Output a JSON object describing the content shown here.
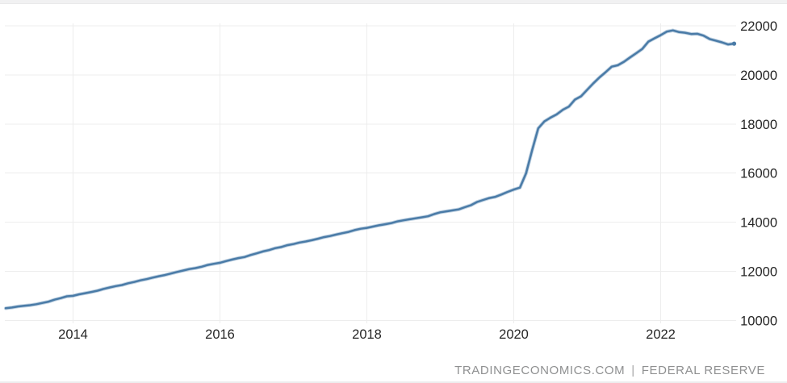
{
  "chart_data": {
    "type": "line",
    "title": "",
    "x": [
      "2013-02",
      "2013-03",
      "2013-04",
      "2013-05",
      "2013-06",
      "2013-07",
      "2013-08",
      "2013-09",
      "2013-10",
      "2013-11",
      "2013-12",
      "2014-01",
      "2014-02",
      "2014-03",
      "2014-04",
      "2014-05",
      "2014-06",
      "2014-07",
      "2014-08",
      "2014-09",
      "2014-10",
      "2014-11",
      "2014-12",
      "2015-01",
      "2015-02",
      "2015-03",
      "2015-04",
      "2015-05",
      "2015-06",
      "2015-07",
      "2015-08",
      "2015-09",
      "2015-10",
      "2015-11",
      "2015-12",
      "2016-01",
      "2016-02",
      "2016-03",
      "2016-04",
      "2016-05",
      "2016-06",
      "2016-07",
      "2016-08",
      "2016-09",
      "2016-10",
      "2016-11",
      "2016-12",
      "2017-01",
      "2017-02",
      "2017-03",
      "2017-04",
      "2017-05",
      "2017-06",
      "2017-07",
      "2017-08",
      "2017-09",
      "2017-10",
      "2017-11",
      "2017-12",
      "2018-01",
      "2018-02",
      "2018-03",
      "2018-04",
      "2018-05",
      "2018-06",
      "2018-07",
      "2018-08",
      "2018-09",
      "2018-10",
      "2018-11",
      "2018-12",
      "2019-01",
      "2019-02",
      "2019-03",
      "2019-04",
      "2019-05",
      "2019-06",
      "2019-07",
      "2019-08",
      "2019-09",
      "2019-10",
      "2019-11",
      "2019-12",
      "2020-01",
      "2020-02",
      "2020-03",
      "2020-04",
      "2020-05",
      "2020-06",
      "2020-07",
      "2020-08",
      "2020-09",
      "2020-10",
      "2020-11",
      "2020-12",
      "2021-01",
      "2021-02",
      "2021-03",
      "2021-04",
      "2021-05",
      "2021-06",
      "2021-07",
      "2021-08",
      "2021-09",
      "2021-10",
      "2021-11",
      "2021-12",
      "2022-01",
      "2022-02",
      "2022-03",
      "2022-04",
      "2022-05",
      "2022-06",
      "2022-07",
      "2022-08",
      "2022-09",
      "2022-10",
      "2022-11",
      "2022-12",
      "2023-01"
    ],
    "series": [
      {
        "name": "series-1",
        "color": "#4a7ba7",
        "values": [
          10499,
          10527,
          10570,
          10596,
          10625,
          10664,
          10717,
          10768,
          10851,
          10914,
          10986,
          11005,
          11066,
          11113,
          11161,
          11216,
          11287,
          11345,
          11402,
          11444,
          11516,
          11568,
          11635,
          11683,
          11747,
          11801,
          11852,
          11912,
          11975,
          12035,
          12093,
          12133,
          12188,
          12260,
          12307,
          12350,
          12420,
          12481,
          12540,
          12584,
          12665,
          12733,
          12809,
          12866,
          12944,
          12990,
          13066,
          13110,
          13174,
          13216,
          13268,
          13327,
          13395,
          13440,
          13499,
          13555,
          13606,
          13680,
          13735,
          13771,
          13823,
          13878,
          13918,
          13965,
          14033,
          14079,
          14121,
          14161,
          14202,
          14245,
          14332,
          14406,
          14443,
          14482,
          14522,
          14611,
          14695,
          14826,
          14908,
          14985,
          15034,
          15130,
          15236,
          15330,
          15409,
          15989,
          16940,
          17821,
          18105,
          18258,
          18390,
          18577,
          18708,
          18994,
          19129,
          19393,
          19658,
          19896,
          20110,
          20332,
          20393,
          20533,
          20710,
          20881,
          21059,
          21355,
          21489,
          21616,
          21759,
          21809,
          21740,
          21713,
          21661,
          21671,
          21596,
          21459,
          21394,
          21325,
          21238,
          21270
        ]
      }
    ],
    "xlabel": "",
    "ylabel": "",
    "yticks": [
      10000,
      12000,
      14000,
      16000,
      18000,
      20000,
      22000
    ],
    "xticks": [
      2014,
      2016,
      2018,
      2020,
      2022
    ],
    "ylim": [
      10000,
      22000
    ],
    "xlim_yearfrac": [
      2013.083,
      2023.0
    ],
    "grid": true,
    "legend": false,
    "end_dot": true,
    "colors": {
      "line": "#4a7ba7",
      "line_halo": "rgba(116,156,190,0.45)",
      "grid": "#ededed",
      "tick_text": "#262626"
    }
  },
  "footer": {
    "source_site": "TRADINGECONOMICS.COM",
    "separator": "|",
    "source_name": "FEDERAL RESERVE"
  }
}
